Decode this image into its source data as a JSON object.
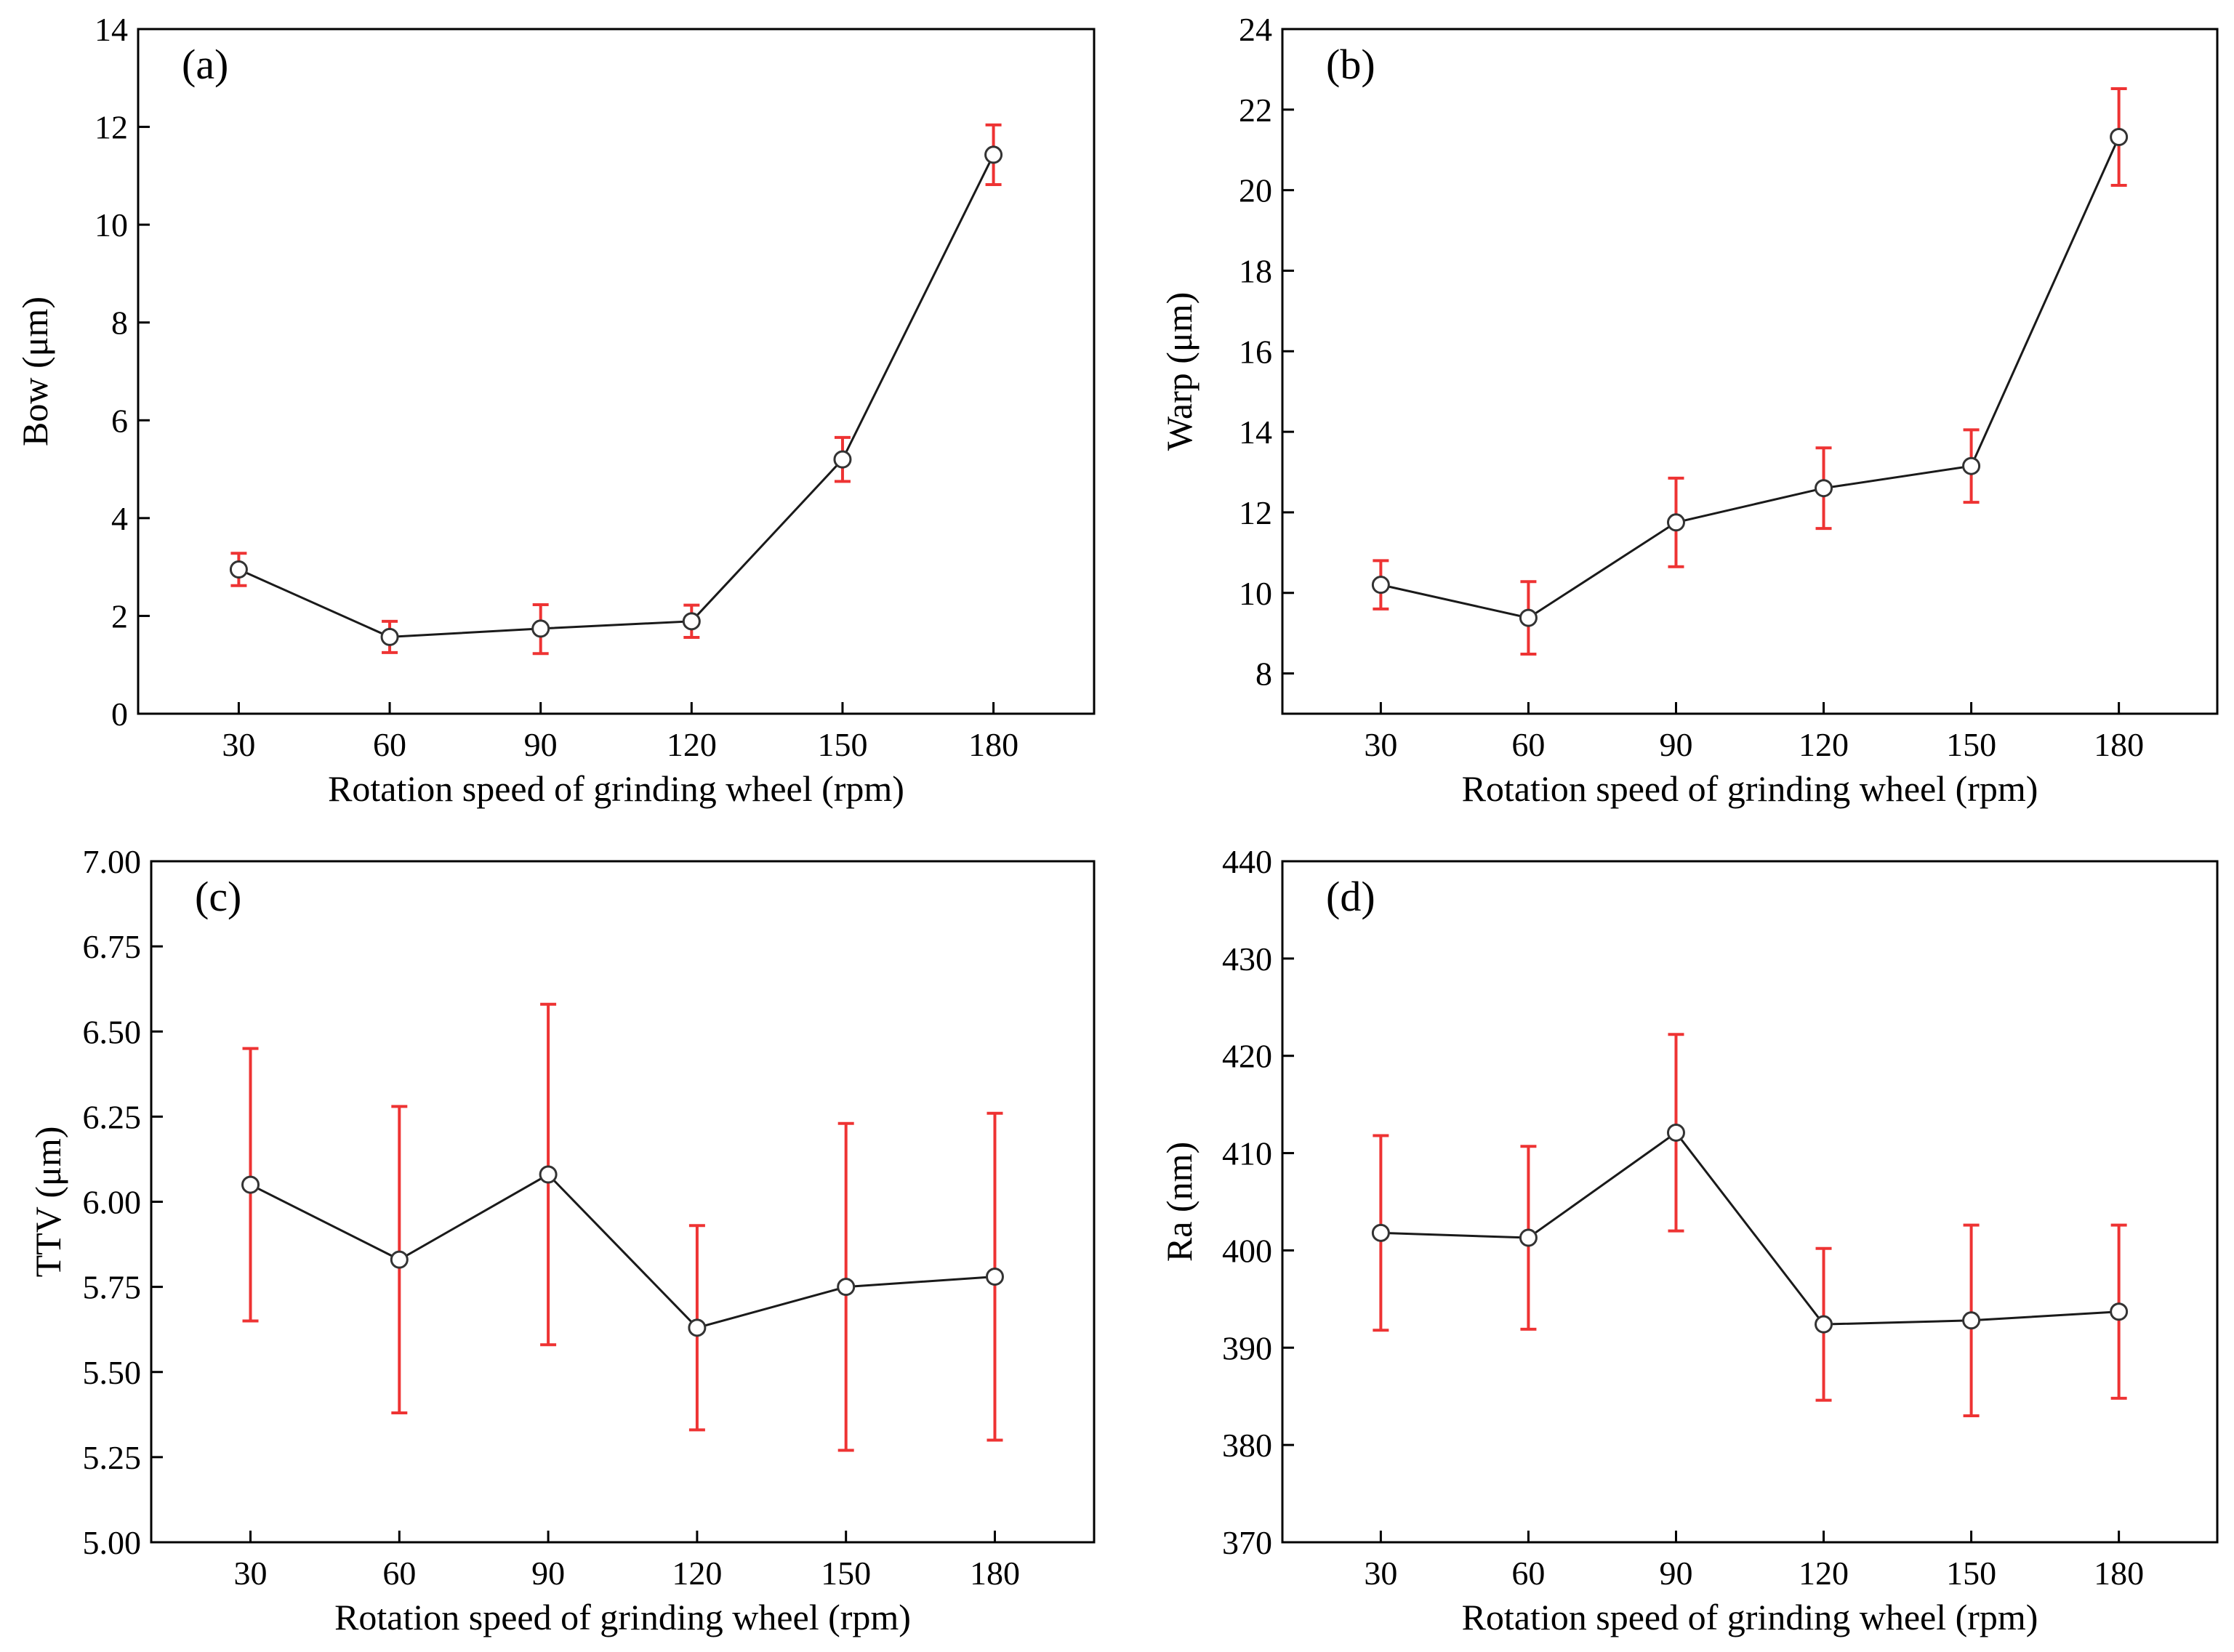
{
  "chart_data": [
    {
      "type": "line",
      "panel_label": "(a)",
      "title": "",
      "xlabel": "Rotation speed of grinding wheel (rpm)",
      "ylabel": "Bow (μm)",
      "x": [
        30,
        60,
        90,
        120,
        150,
        180
      ],
      "x_tick_labels": [
        "30",
        "60",
        "90",
        "120",
        "150",
        "180"
      ],
      "xlim": [
        10,
        200
      ],
      "ylim": [
        0,
        14
      ],
      "y_ticks": [
        0,
        2,
        4,
        6,
        8,
        10,
        12,
        14
      ],
      "y_tick_labels": [
        "0",
        "2",
        "4",
        "6",
        "8",
        "10",
        "12",
        "14"
      ],
      "series": [
        {
          "name": "Bow",
          "values": [
            2.95,
            1.57,
            1.74,
            1.89,
            5.2,
            11.43
          ],
          "err_low": [
            2.62,
            1.25,
            1.23,
            1.56,
            4.75,
            10.82
          ],
          "err_high": [
            3.28,
            1.89,
            2.23,
            2.22,
            5.65,
            12.04
          ]
        }
      ]
    },
    {
      "type": "line",
      "panel_label": "(b)",
      "title": "",
      "xlabel": "Rotation speed of grinding wheel (rpm)",
      "ylabel": "Warp (μm)",
      "x": [
        30,
        60,
        90,
        120,
        150,
        180
      ],
      "x_tick_labels": [
        "30",
        "60",
        "90",
        "120",
        "150",
        "180"
      ],
      "xlim": [
        10,
        200
      ],
      "ylim": [
        7,
        24
      ],
      "y_ticks": [
        8,
        10,
        12,
        14,
        16,
        18,
        20,
        22,
        24
      ],
      "y_tick_labels": [
        "8",
        "10",
        "12",
        "14",
        "16",
        "18",
        "20",
        "22",
        "24"
      ],
      "series": [
        {
          "name": "Warp",
          "values": [
            10.2,
            9.38,
            11.75,
            12.6,
            13.15,
            21.32
          ],
          "err_low": [
            9.6,
            8.48,
            10.65,
            11.6,
            12.25,
            20.12
          ],
          "err_high": [
            10.8,
            10.28,
            12.85,
            13.6,
            14.05,
            22.52
          ]
        }
      ]
    },
    {
      "type": "line",
      "panel_label": "(c)",
      "title": "",
      "xlabel": "Rotation speed of grinding wheel (rpm)",
      "ylabel": "TTV (μm)",
      "x": [
        30,
        60,
        90,
        120,
        150,
        180
      ],
      "x_tick_labels": [
        "30",
        "60",
        "90",
        "120",
        "150",
        "180"
      ],
      "xlim": [
        10,
        200
      ],
      "ylim": [
        5.0,
        7.0
      ],
      "y_ticks": [
        5.0,
        5.25,
        5.5,
        5.75,
        6.0,
        6.25,
        6.5,
        6.75,
        7.0
      ],
      "y_tick_labels": [
        "5.00",
        "5.25",
        "5.50",
        "5.75",
        "6.00",
        "6.25",
        "6.50",
        "6.75",
        "7.00"
      ],
      "series": [
        {
          "name": "TTV",
          "values": [
            6.05,
            5.83,
            6.08,
            5.63,
            5.75,
            5.78
          ],
          "err_low": [
            5.65,
            5.38,
            5.58,
            5.33,
            5.27,
            5.3
          ],
          "err_high": [
            6.45,
            6.28,
            6.58,
            5.93,
            6.23,
            6.26
          ]
        }
      ]
    },
    {
      "type": "line",
      "panel_label": "(d)",
      "title": "",
      "xlabel": "Rotation speed of grinding wheel (rpm)",
      "ylabel": "Ra (nm)",
      "x": [
        30,
        60,
        90,
        120,
        150,
        180
      ],
      "x_tick_labels": [
        "30",
        "60",
        "90",
        "120",
        "150",
        "180"
      ],
      "xlim": [
        10,
        200
      ],
      "ylim": [
        370,
        440
      ],
      "y_ticks": [
        370,
        380,
        390,
        400,
        410,
        420,
        430,
        440
      ],
      "y_tick_labels": [
        "370",
        "380",
        "390",
        "400",
        "410",
        "420",
        "430",
        "440"
      ],
      "series": [
        {
          "name": "Ra",
          "values": [
            401.8,
            401.3,
            412.1,
            392.4,
            392.8,
            393.7
          ],
          "err_low": [
            391.8,
            391.9,
            402.0,
            384.6,
            383.0,
            384.8
          ],
          "err_high": [
            411.8,
            410.7,
            422.2,
            400.2,
            402.6,
            402.6
          ]
        }
      ]
    }
  ]
}
